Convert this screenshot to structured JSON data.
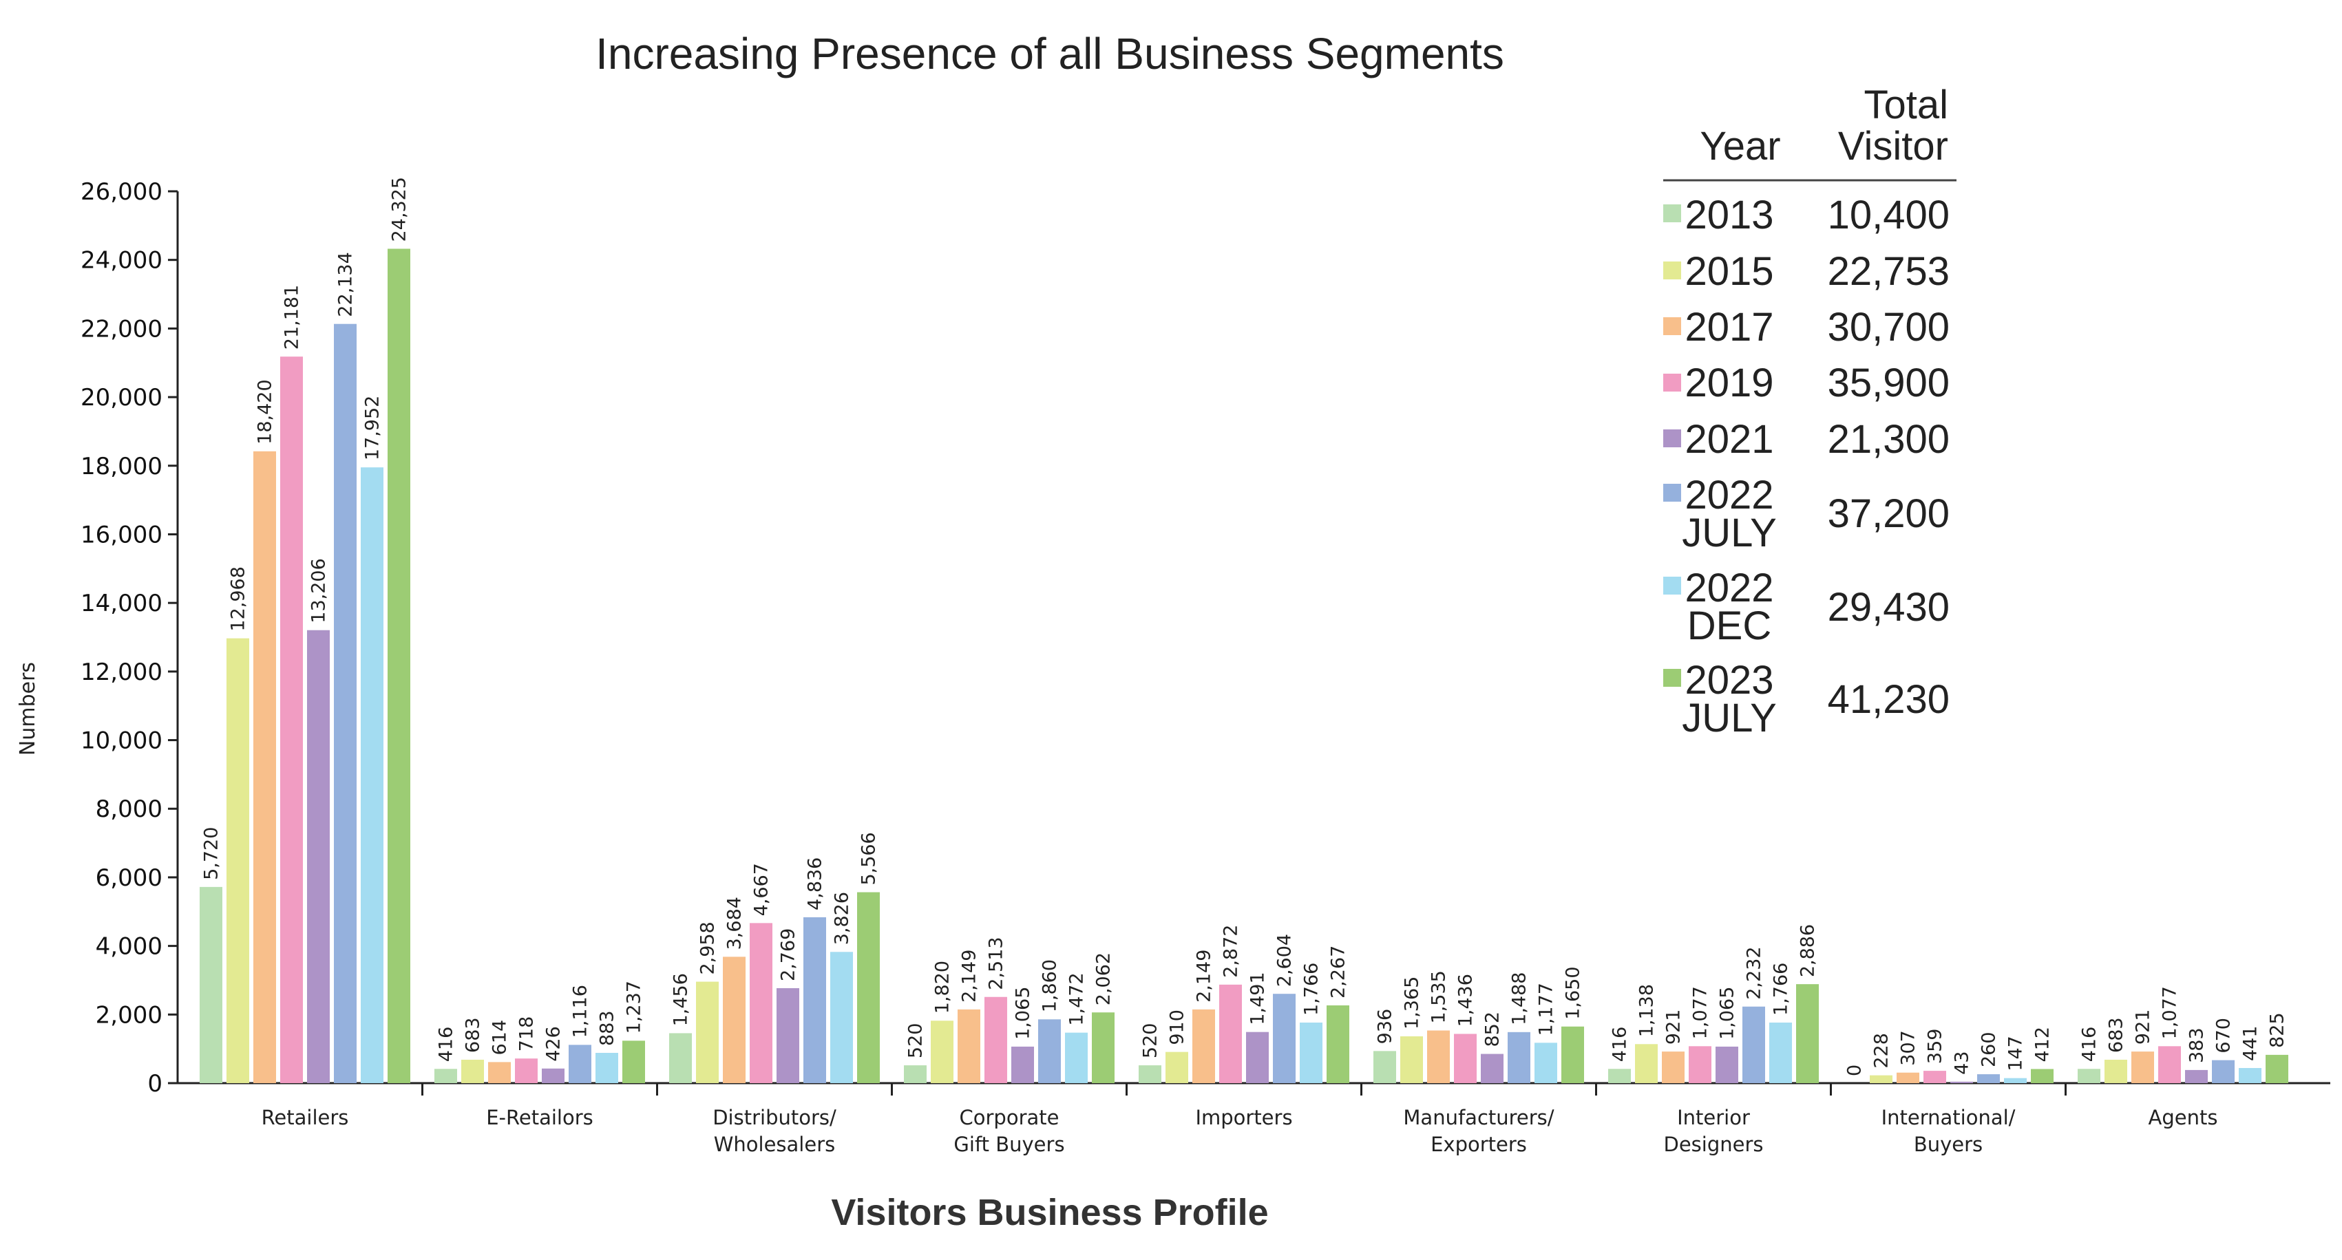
{
  "chart_data": {
    "type": "bar",
    "title": "Increasing Presence of all Business Segments",
    "xlabel": "Visitors Business Profile",
    "ylabel": "Numbers",
    "ylim": [
      0,
      26000
    ],
    "yticks": [
      0,
      2000,
      4000,
      6000,
      8000,
      10000,
      12000,
      14000,
      16000,
      18000,
      20000,
      22000,
      24000,
      26000
    ],
    "ytick_labels": [
      "0",
      "2,000",
      "4,000",
      "6,000",
      "8,000",
      "10,000",
      "12,000",
      "14,000",
      "16,000",
      "18,000",
      "20,000",
      "22,000",
      "24,000",
      "26,000"
    ],
    "categories": [
      [
        "Retailers"
      ],
      [
        "E-Retailors"
      ],
      [
        "Distributors/",
        "Wholesalers"
      ],
      [
        "Corporate",
        "Gift Buyers"
      ],
      [
        "Importers"
      ],
      [
        "Manufacturers/",
        "Exporters"
      ],
      [
        "Interior",
        "Designers"
      ],
      [
        "International/",
        "Buyers"
      ],
      [
        "Agents"
      ]
    ],
    "legend": {
      "placement": "top-right",
      "header_year": "Year",
      "header_total": [
        "Total",
        "Visitor"
      ]
    },
    "series": [
      {
        "name": [
          "2013"
        ],
        "total": "10,400",
        "color": "#b9dfb2",
        "values": [
          5720,
          416,
          1456,
          520,
          520,
          936,
          416,
          0,
          416
        ],
        "labels": [
          "5,720",
          "416",
          "1,456",
          "520",
          "520",
          "936",
          "416",
          "0",
          "416"
        ]
      },
      {
        "name": [
          "2015"
        ],
        "total": "22,753",
        "color": "#e3ea92",
        "values": [
          12968,
          683,
          2958,
          1820,
          910,
          1365,
          1138,
          228,
          683
        ],
        "labels": [
          "12,968",
          "683",
          "2,958",
          "1,820",
          "910",
          "1,365",
          "1,138",
          "228",
          "683"
        ]
      },
      {
        "name": [
          "2017"
        ],
        "total": "30,700",
        "color": "#f8bf8b",
        "values": [
          18420,
          614,
          3684,
          2149,
          2149,
          1535,
          921,
          307,
          921
        ],
        "labels": [
          "18,420",
          "614",
          "3,684",
          "2,149",
          "2,149",
          "1,535",
          "921",
          "307",
          "921"
        ]
      },
      {
        "name": [
          "2019"
        ],
        "total": "35,900",
        "color": "#f19cc2",
        "values": [
          21181,
          718,
          4667,
          2513,
          2872,
          1436,
          1077,
          359,
          1077
        ],
        "labels": [
          "21,181",
          "718",
          "4,667",
          "2,513",
          "2,872",
          "1,436",
          "1,077",
          "359",
          "1,077"
        ]
      },
      {
        "name": [
          "2021"
        ],
        "total": "21,300",
        "color": "#ad93c7",
        "values": [
          13206,
          426,
          2769,
          1065,
          1491,
          852,
          1065,
          43,
          383
        ],
        "labels": [
          "13,206",
          "426",
          "2,769",
          "1,065",
          "1,491",
          "852",
          "1,065",
          "43",
          "383"
        ]
      },
      {
        "name": [
          "2022",
          "JULY"
        ],
        "total": "37,200",
        "color": "#95b1dd",
        "values": [
          22134,
          1116,
          4836,
          1860,
          2604,
          1488,
          2232,
          260,
          670
        ],
        "labels": [
          "22,134",
          "1,116",
          "4,836",
          "1,860",
          "2,604",
          "1,488",
          "2,232",
          "260",
          "670"
        ]
      },
      {
        "name": [
          "2022",
          "DEC"
        ],
        "total": "29,430",
        "color": "#a3dcf1",
        "values": [
          17952,
          883,
          3826,
          1472,
          1766,
          1177,
          1766,
          147,
          441
        ],
        "labels": [
          "17,952",
          "883",
          "3,826",
          "1,472",
          "1,766",
          "1,177",
          "1,766",
          "147",
          "441"
        ]
      },
      {
        "name": [
          "2023",
          "JULY"
        ],
        "total": "41,230",
        "color": "#9ccc74",
        "values": [
          24325,
          1237,
          5566,
          2062,
          2267,
          1650,
          2886,
          412,
          825
        ],
        "labels": [
          "24,325",
          "1,237",
          "5,566",
          "2,062",
          "2,267",
          "1,650",
          "2,886",
          "412",
          "825"
        ]
      }
    ]
  }
}
